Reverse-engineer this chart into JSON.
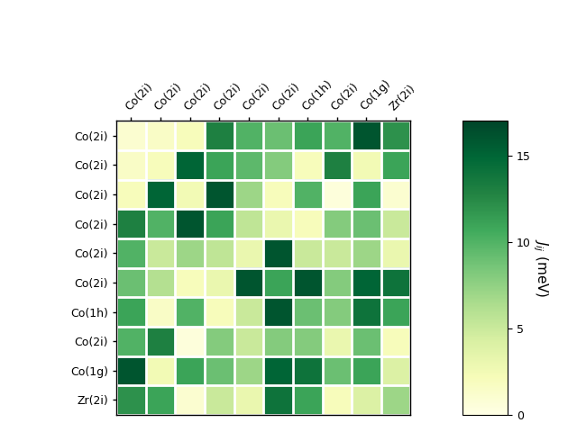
{
  "labels": [
    "Co(2i)",
    "Co(2i)",
    "Co(2i)",
    "Co(2i)",
    "Co(2i)",
    "Co(2i)",
    "Co(1h)",
    "Co(2i)",
    "Co(1g)",
    "Zr(2i)"
  ],
  "matrix": [
    [
      1.0,
      1.5,
      2.0,
      13.0,
      10.0,
      9.0,
      11.0,
      10.0,
      16.0,
      12.0
    ],
    [
      1.5,
      2.0,
      15.0,
      11.0,
      9.5,
      8.0,
      2.0,
      13.0,
      2.5,
      11.0
    ],
    [
      2.0,
      15.0,
      2.5,
      16.0,
      7.0,
      2.0,
      10.0,
      0.5,
      11.0,
      1.0
    ],
    [
      13.0,
      10.0,
      16.0,
      11.0,
      5.5,
      3.0,
      2.0,
      8.0,
      9.0,
      5.0
    ],
    [
      10.0,
      5.0,
      7.0,
      5.5,
      3.0,
      16.0,
      5.0,
      5.0,
      7.0,
      3.0
    ],
    [
      9.0,
      6.0,
      2.0,
      3.0,
      16.0,
      11.0,
      16.0,
      8.0,
      15.0,
      14.0
    ],
    [
      11.0,
      1.5,
      10.0,
      2.0,
      5.0,
      16.0,
      9.0,
      8.0,
      14.0,
      11.0
    ],
    [
      10.0,
      13.0,
      0.5,
      8.0,
      5.0,
      8.0,
      8.0,
      3.0,
      9.0,
      2.0
    ],
    [
      16.0,
      2.5,
      11.0,
      9.0,
      7.0,
      15.0,
      14.0,
      9.0,
      11.0,
      4.0
    ],
    [
      12.0,
      11.0,
      1.0,
      5.0,
      3.0,
      14.0,
      11.0,
      2.0,
      4.0,
      7.0
    ]
  ],
  "vmin": 0,
  "vmax": 17,
  "cmap": "YlGn",
  "colorbar_label": "$J_{ij}$ (meV)",
  "colorbar_ticks": [
    0,
    5,
    10,
    15
  ],
  "title": "",
  "figsize": [
    6.4,
    4.8
  ],
  "dpi": 100,
  "grid_color": "white",
  "grid_linewidth": 2,
  "xlabel_fontsize": 9,
  "ylabel_fontsize": 9,
  "cbar_fontsize": 11
}
